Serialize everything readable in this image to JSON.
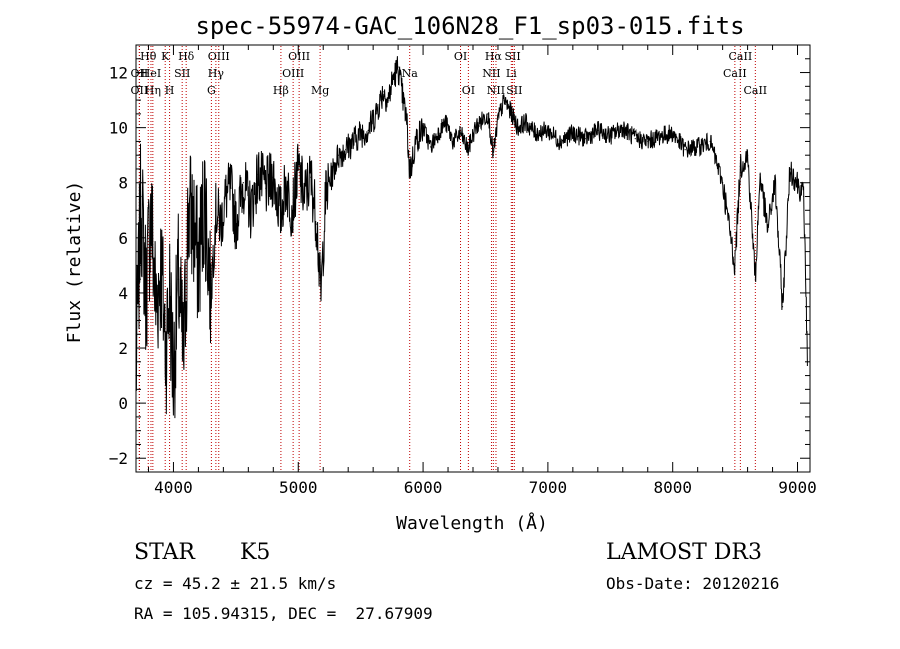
{
  "chart_data": {
    "type": "line",
    "title": "spec-55974-GAC_106N28_F1_sp03-015.fits",
    "xlabel": "Wavelength (Å)",
    "ylabel": "Flux (relative)",
    "xlim": [
      3700,
      9100
    ],
    "ylim": [
      -2.5,
      13.0
    ],
    "xticks": [
      4000,
      5000,
      6000,
      7000,
      8000,
      9000
    ],
    "yticks": [
      -2,
      0,
      2,
      4,
      6,
      8,
      10,
      12
    ],
    "xtick_labels": [
      "4000",
      "5000",
      "6000",
      "7000",
      "8000",
      "9000"
    ],
    "ytick_labels": [
      "−2",
      "0",
      "2",
      "4",
      "6",
      "8",
      "10",
      "12"
    ],
    "grid": false,
    "series": [
      {
        "name": "spectrum",
        "x": [
          3700,
          3740,
          3780,
          3820,
          3860,
          3900,
          3940,
          3970,
          4000,
          4040,
          4080,
          4120,
          4160,
          4200,
          4250,
          4300,
          4340,
          4380,
          4420,
          4460,
          4500,
          4560,
          4620,
          4680,
          4740,
          4800,
          4860,
          4900,
          4950,
          5000,
          5050,
          5100,
          5150,
          5180,
          5220,
          5270,
          5320,
          5380,
          5440,
          5500,
          5560,
          5620,
          5680,
          5720,
          5760,
          5800,
          5840,
          5870,
          5890,
          5910,
          5940,
          6000,
          6060,
          6120,
          6180,
          6240,
          6300,
          6360,
          6420,
          6480,
          6520,
          6563,
          6600,
          6650,
          6700,
          6760,
          6820,
          6900,
          7000,
          7100,
          7200,
          7300,
          7400,
          7500,
          7600,
          7700,
          7800,
          7900,
          8000,
          8100,
          8200,
          8300,
          8400,
          8498,
          8542,
          8600,
          8662,
          8700,
          8760,
          8820,
          8880,
          8940,
          9000,
          9050,
          9080
        ],
        "y": [
          1.0,
          7.5,
          4.0,
          7.0,
          3.5,
          5.0,
          2.0,
          4.0,
          1.0,
          4.5,
          1.5,
          7.0,
          6.5,
          5.0,
          7.5,
          4.0,
          7.0,
          6.5,
          7.5,
          7.8,
          6.5,
          8.0,
          7.0,
          8.3,
          7.8,
          8.2,
          6.8,
          8.0,
          7.0,
          8.5,
          7.5,
          8.2,
          6.5,
          3.8,
          7.5,
          8.3,
          9.0,
          9.2,
          9.5,
          9.8,
          9.9,
          10.5,
          11.3,
          11.0,
          11.8,
          12.2,
          11.0,
          10.2,
          8.5,
          8.7,
          9.5,
          10.0,
          9.3,
          9.8,
          10.2,
          9.5,
          9.8,
          9.2,
          10.0,
          10.3,
          10.5,
          9.0,
          10.3,
          11.0,
          10.6,
          10.0,
          10.2,
          9.8,
          9.9,
          9.5,
          9.8,
          9.6,
          9.9,
          9.7,
          10.0,
          9.6,
          9.5,
          9.7,
          9.8,
          9.2,
          9.3,
          9.5,
          8.0,
          5.0,
          8.6,
          9.0,
          4.5,
          8.3,
          6.3,
          8.0,
          3.5,
          8.5,
          8.0,
          7.5,
          1.5
        ]
      }
    ],
    "spectral_lines": [
      {
        "label": "Hθ",
        "wavelength": 3798,
        "row": 1
      },
      {
        "label": "OII",
        "wavelength": 3727,
        "row": 2
      },
      {
        "label": "HeI",
        "wavelength": 3820,
        "row": 2
      },
      {
        "label": "OII",
        "wavelength": 3727,
        "row": 3
      },
      {
        "label": "Hη",
        "wavelength": 3835,
        "row": 3
      },
      {
        "label": "K",
        "wavelength": 3934,
        "row": 1
      },
      {
        "label": "SII",
        "wavelength": 4070,
        "row": 2
      },
      {
        "label": "H",
        "wavelength": 3969,
        "row": 3
      },
      {
        "label": "Hδ",
        "wavelength": 4102,
        "row": 1
      },
      {
        "label": "OIII",
        "wavelength": 4363,
        "row": 1
      },
      {
        "label": "Hγ",
        "wavelength": 4340,
        "row": 2
      },
      {
        "label": "G",
        "wavelength": 4304,
        "row": 3
      },
      {
        "label": "OIII",
        "wavelength": 5007,
        "row": 1
      },
      {
        "label": "OIII",
        "wavelength": 4959,
        "row": 2
      },
      {
        "label": "Hβ",
        "wavelength": 4861,
        "row": 3
      },
      {
        "label": "Mg",
        "wavelength": 5175,
        "row": 3
      },
      {
        "label": "Na",
        "wavelength": 5893,
        "row": 2
      },
      {
        "label": "OI",
        "wavelength": 6300,
        "row": 1
      },
      {
        "label": "OI",
        "wavelength": 6363,
        "row": 3
      },
      {
        "label": "Hα",
        "wavelength": 6563,
        "row": 1
      },
      {
        "label": "NII",
        "wavelength": 6548,
        "row": 2
      },
      {
        "label": "NII",
        "wavelength": 6584,
        "row": 3
      },
      {
        "label": "SII",
        "wavelength": 6717,
        "row": 1
      },
      {
        "label": "Li",
        "wavelength": 6707,
        "row": 2
      },
      {
        "label": "SII",
        "wavelength": 6731,
        "row": 3
      },
      {
        "label": "CaII",
        "wavelength": 8542,
        "row": 1
      },
      {
        "label": "CaII",
        "wavelength": 8498,
        "row": 2
      },
      {
        "label": "CaII",
        "wavelength": 8662,
        "row": 3
      }
    ]
  },
  "info": {
    "class": "STAR",
    "subclass": "K5",
    "survey": "LAMOST DR3",
    "cz": "cz = 45.2 ± 21.5 km/s",
    "obs_date": "Obs-Date: 20120216",
    "coords": "RA = 105.94315, DEC =  27.67909"
  }
}
